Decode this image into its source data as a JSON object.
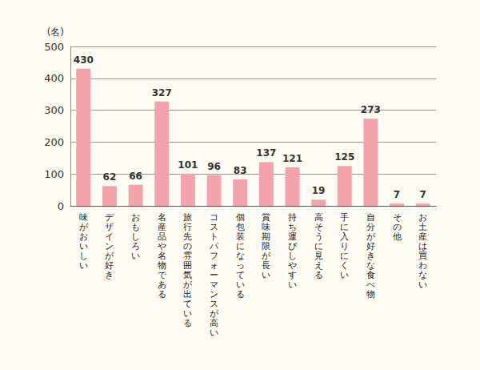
{
  "chart_data": {
    "type": "bar",
    "y_label": "(名)",
    "categories": [
      "味がおいしい",
      "デザインが好き",
      "おもしろい",
      "名産品や名物である",
      "旅行先の雰囲気が出ている",
      "コストパフォーマンスが高い",
      "個包装になっている",
      "賞味期限が長い",
      "持ち運びしやすい",
      "高そうに見える",
      "手に入りにくい",
      "自分が好きな食べ物",
      "その他",
      "お土産は買わない"
    ],
    "values": [
      430,
      62,
      66,
      327,
      101,
      96,
      83,
      137,
      121,
      19,
      125,
      273,
      7,
      7
    ],
    "color": "#f4a3aa",
    "ylim": [
      0,
      500
    ],
    "yticks": [
      0,
      100,
      200,
      300,
      400,
      500
    ],
    "grid": true,
    "data_labels": true
  }
}
